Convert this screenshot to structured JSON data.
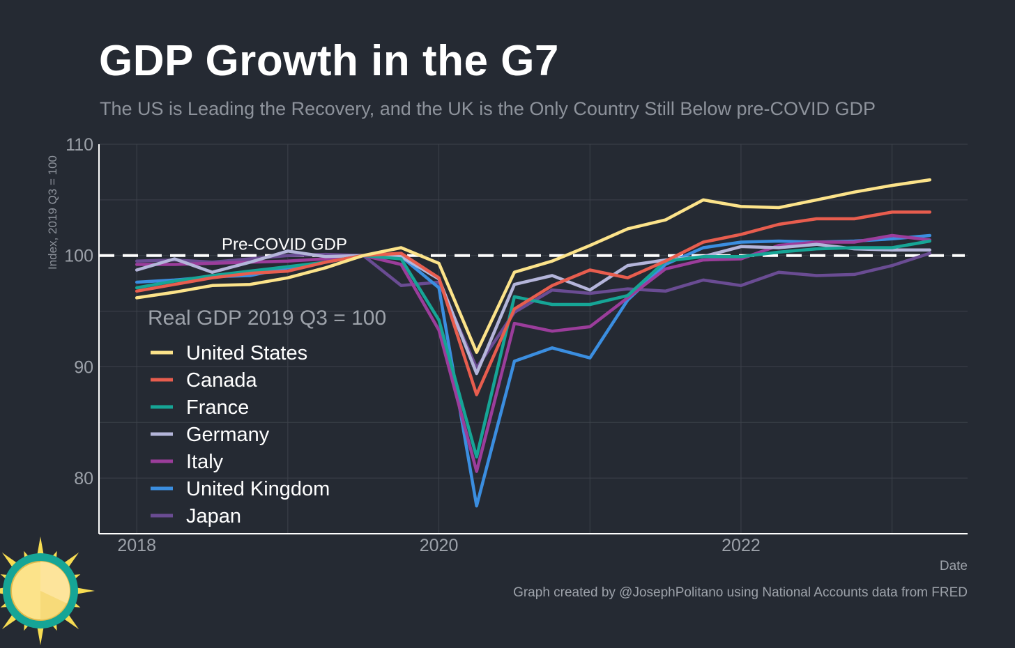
{
  "header": {
    "title": "GDP Growth in the G7",
    "subtitle": "The US is Leading the Recovery, and the UK is the Only Country Still Below pre-COVID GDP"
  },
  "footer": {
    "credit": "Graph created by @JosephPolitano using National Accounts data from FRED"
  },
  "logo": {
    "icon": "sun-icon"
  },
  "chart_data": {
    "type": "line",
    "title": "GDP Growth in the G7",
    "subtitle": "The US is Leading the Recovery, and the UK is the Only Country Still Below pre-COVID GDP",
    "xlabel": "Date",
    "ylabel": "Index, 2019 Q3 = 100",
    "xlim": [
      2017.75,
      2023.5
    ],
    "ylim": [
      75,
      110
    ],
    "x_ticks": [
      {
        "value": 2018,
        "label": "2018"
      },
      {
        "value": 2020,
        "label": "2020"
      },
      {
        "value": 2022,
        "label": "2022"
      }
    ],
    "y_ticks": [
      {
        "value": 80,
        "label": "80"
      },
      {
        "value": 90,
        "label": "90"
      },
      {
        "value": 100,
        "label": "100"
      },
      {
        "value": 110,
        "label": "110"
      }
    ],
    "grid": true,
    "reference_line": {
      "value": 100,
      "label": "Pre-COVID GDP",
      "color": "#ffffff"
    },
    "legend": {
      "title": "Real GDP 2019 Q3 = 100",
      "placement": "bottom-left"
    },
    "x": [
      2018.0,
      2018.25,
      2018.5,
      2018.75,
      2019.0,
      2019.25,
      2019.5,
      2019.75,
      2020.0,
      2020.25,
      2020.5,
      2020.75,
      2021.0,
      2021.25,
      2021.5,
      2021.75,
      2022.0,
      2022.25,
      2022.5,
      2022.75,
      2023.0,
      2023.25
    ],
    "series": [
      {
        "name": "Japan",
        "color": "#6a4c93",
        "values": [
          99.5,
          99.6,
          99.4,
          99.7,
          100.0,
          100.1,
          100.0,
          97.3,
          97.6,
          89.9,
          94.9,
          96.9,
          96.6,
          97.0,
          96.8,
          97.8,
          97.3,
          98.5,
          98.2,
          98.3,
          99.1,
          100.2
        ]
      },
      {
        "name": "United Kingdom",
        "color": "#3b8ee0",
        "values": [
          97.6,
          97.8,
          98.1,
          98.2,
          98.9,
          99.4,
          100.0,
          99.9,
          97.1,
          77.5,
          90.5,
          91.7,
          90.8,
          96.0,
          99.2,
          100.7,
          101.2,
          101.3,
          101.2,
          101.3,
          101.5,
          101.8
        ]
      },
      {
        "name": "Italy",
        "color": "#9b3d9b",
        "values": [
          99.2,
          99.2,
          99.3,
          99.4,
          99.5,
          99.7,
          100.0,
          99.2,
          93.3,
          80.6,
          93.9,
          93.2,
          93.6,
          96.2,
          98.8,
          99.6,
          99.7,
          100.9,
          101.2,
          101.2,
          101.8,
          101.4
        ]
      },
      {
        "name": "Germany",
        "color": "#b4b5da",
        "values": [
          98.7,
          99.7,
          98.5,
          99.4,
          100.4,
          99.9,
          100.0,
          99.9,
          97.9,
          89.4,
          97.4,
          98.2,
          96.9,
          99.1,
          99.6,
          99.9,
          100.8,
          100.7,
          101.0,
          100.6,
          100.5,
          100.5
        ]
      },
      {
        "name": "France",
        "color": "#16a596",
        "values": [
          97.1,
          97.7,
          98.2,
          98.6,
          99.0,
          99.4,
          100.0,
          99.7,
          94.2,
          81.9,
          96.3,
          95.6,
          95.6,
          96.4,
          99.5,
          99.9,
          99.9,
          100.3,
          100.6,
          100.7,
          100.7,
          101.3
        ]
      },
      {
        "name": "Canada",
        "color": "#e85d4e",
        "values": [
          96.8,
          97.4,
          98.0,
          98.4,
          98.6,
          99.4,
          100.0,
          100.2,
          98.0,
          87.5,
          95.2,
          97.3,
          98.7,
          98.0,
          99.5,
          101.2,
          101.9,
          102.8,
          103.3,
          103.3,
          103.9,
          103.9
        ]
      },
      {
        "name": "United States",
        "color": "#fce38a",
        "values": [
          96.2,
          96.7,
          97.3,
          97.4,
          98.0,
          98.9,
          100.0,
          100.7,
          99.3,
          91.3,
          98.5,
          99.5,
          100.9,
          102.4,
          103.2,
          105.0,
          104.4,
          104.3,
          105.0,
          105.7,
          106.3,
          106.8
        ]
      }
    ],
    "legend_order": [
      "United States",
      "Canada",
      "France",
      "Germany",
      "Italy",
      "United Kingdom",
      "Japan"
    ]
  }
}
